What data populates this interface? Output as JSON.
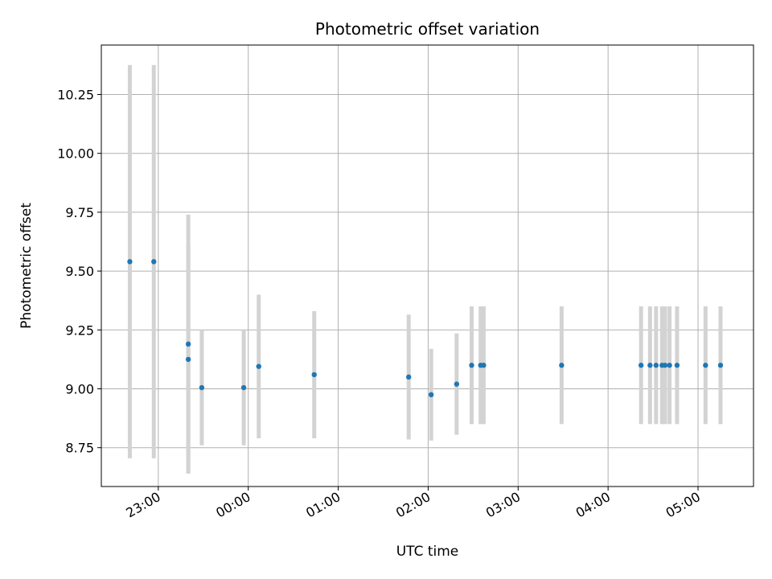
{
  "chart_data": {
    "type": "scatter",
    "title": "Photometric offset variation",
    "xlabel": "UTC time",
    "ylabel": "Photometric offset",
    "xlim": [
      "22:22",
      "05:37"
    ],
    "ylim": [
      8.585,
      10.46
    ],
    "grid": true,
    "colors": {
      "points": "#1f77b4",
      "errorbars": "#d3d3d3",
      "grid": "#b0b0b0"
    },
    "x_ticks": [
      "23:00",
      "00:00",
      "01:00",
      "02:00",
      "03:00",
      "04:00",
      "05:00"
    ],
    "y_ticks": [
      "8.75",
      "9.00",
      "9.25",
      "9.50",
      "9.75",
      "10.00",
      "10.25"
    ],
    "series": [
      {
        "points": [
          {
            "x": "22:41",
            "y": 9.54,
            "err": 0.835
          },
          {
            "x": "22:57",
            "y": 9.54,
            "err": 0.835
          },
          {
            "x": "23:20",
            "y": 9.19,
            "err": 0.55
          },
          {
            "x": "23:20",
            "y": 9.125,
            "err": 0.485
          },
          {
            "x": "23:29",
            "y": 9.005,
            "err": 0.245
          },
          {
            "x": "23:57",
            "y": 9.005,
            "err": 0.245
          },
          {
            "x": "00:07",
            "y": 9.095,
            "err": 0.305
          },
          {
            "x": "00:44",
            "y": 9.06,
            "err": 0.27
          },
          {
            "x": "01:47",
            "y": 9.05,
            "err": 0.265
          },
          {
            "x": "02:02",
            "y": 8.975,
            "err": 0.195
          },
          {
            "x": "02:19",
            "y": 9.02,
            "err": 0.215
          },
          {
            "x": "02:29",
            "y": 9.1,
            "err": 0.25
          },
          {
            "x": "02:35",
            "y": 9.1,
            "err": 0.25
          },
          {
            "x": "02:37",
            "y": 9.1,
            "err": 0.25
          },
          {
            "x": "03:29",
            "y": 9.1,
            "err": 0.25
          },
          {
            "x": "04:22",
            "y": 9.1,
            "err": 0.25
          },
          {
            "x": "04:28",
            "y": 9.1,
            "err": 0.25
          },
          {
            "x": "04:32",
            "y": 9.1,
            "err": 0.25
          },
          {
            "x": "04:36",
            "y": 9.1,
            "err": 0.25
          },
          {
            "x": "04:38",
            "y": 9.1,
            "err": 0.25
          },
          {
            "x": "04:41",
            "y": 9.1,
            "err": 0.25
          },
          {
            "x": "04:46",
            "y": 9.1,
            "err": 0.25
          },
          {
            "x": "05:05",
            "y": 9.1,
            "err": 0.25
          },
          {
            "x": "05:15",
            "y": 9.1,
            "err": 0.25
          }
        ]
      }
    ]
  }
}
